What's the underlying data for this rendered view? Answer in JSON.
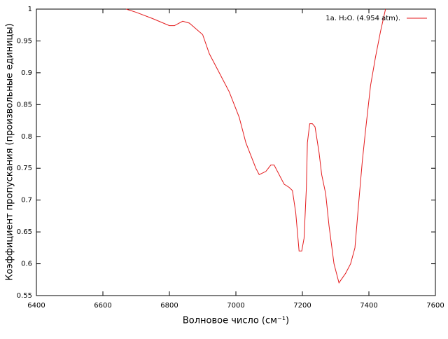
{
  "chart_data": {
    "type": "line",
    "xlabel": "Волновое число (см⁻¹)",
    "ylabel": "Коэффициент пропускания (произвольные единицы)",
    "x": [
      6670,
      6700,
      6750,
      6800,
      6815,
      6840,
      6860,
      6900,
      6920,
      6950,
      6980,
      7010,
      7030,
      7060,
      7070,
      7090,
      7105,
      7115,
      7130,
      7145,
      7160,
      7170,
      7180,
      7185,
      7190,
      7198,
      7205,
      7212,
      7215,
      7222,
      7230,
      7238,
      7250,
      7258,
      7270,
      7280,
      7295,
      7310,
      7330,
      7345,
      7358,
      7370,
      7380,
      7390,
      7405,
      7420,
      7435,
      7450
    ],
    "series": [
      {
        "name": "1a. H₂O. (4.954 atm).",
        "color": "#e41a1c",
        "values": [
          1.0,
          0.995,
          0.985,
          0.974,
          0.974,
          0.981,
          0.978,
          0.96,
          0.93,
          0.9,
          0.87,
          0.83,
          0.79,
          0.75,
          0.74,
          0.745,
          0.755,
          0.755,
          0.74,
          0.725,
          0.72,
          0.715,
          0.68,
          0.65,
          0.62,
          0.62,
          0.64,
          0.72,
          0.79,
          0.82,
          0.82,
          0.815,
          0.775,
          0.74,
          0.71,
          0.66,
          0.6,
          0.57,
          0.585,
          0.6,
          0.625,
          0.7,
          0.76,
          0.81,
          0.88,
          0.925,
          0.965,
          1.0
        ]
      }
    ],
    "xlim": [
      6400,
      7600
    ],
    "xticks": [
      6400,
      6600,
      6800,
      7000,
      7200,
      7400,
      7600
    ],
    "ylim": [
      0.55,
      1
    ],
    "yticks": [
      0.55,
      0.6,
      0.65,
      0.7,
      0.75,
      0.8,
      0.85,
      0.9,
      0.95,
      1
    ],
    "legend": "upper right"
  }
}
